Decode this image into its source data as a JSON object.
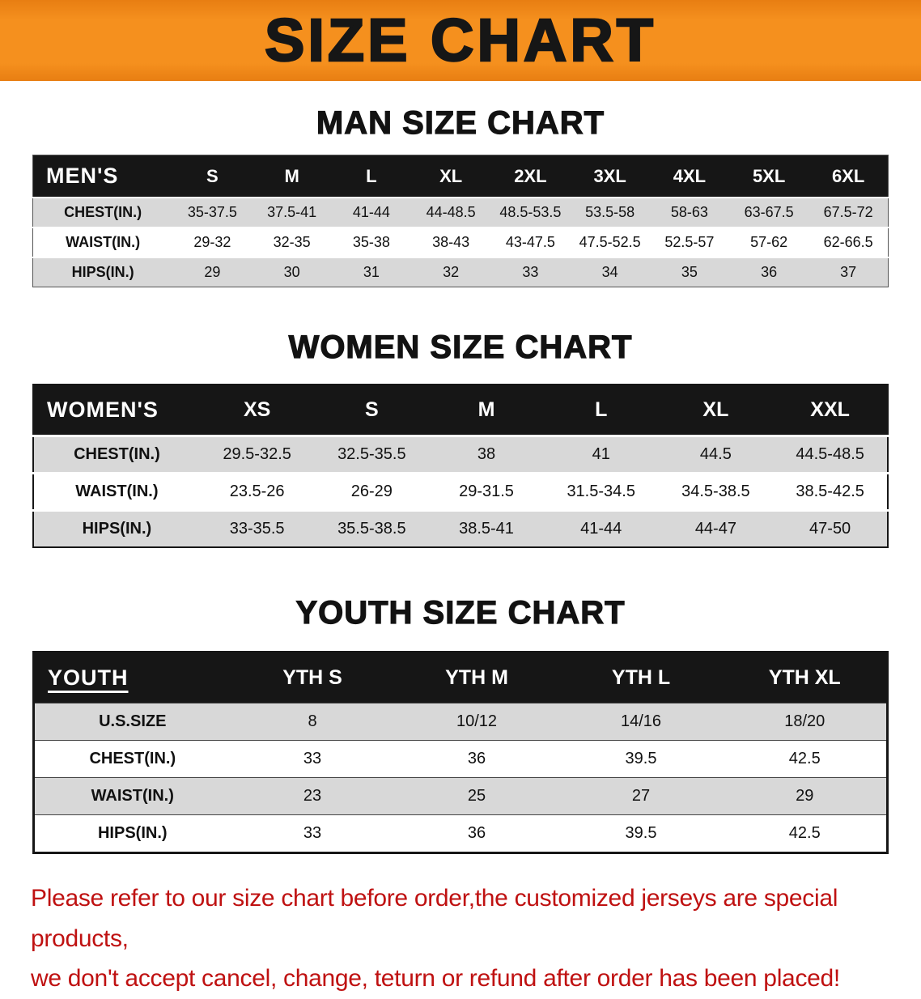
{
  "banner": {
    "title": "SIZE CHART",
    "background_color": "#F5901E",
    "text_color": "#161616"
  },
  "colors": {
    "table_header_bg": "#161616",
    "table_header_text": "#FFFFFF",
    "row_stripe": "#D8D8D8",
    "footer_text": "#BF1111"
  },
  "sections": [
    {
      "id": "men",
      "title": "MAN SIZE CHART",
      "table": {
        "header": [
          "MEN'S",
          "S",
          "M",
          "L",
          "XL",
          "2XL",
          "3XL",
          "4XL",
          "5XL",
          "6XL"
        ],
        "rows": [
          {
            "label": "CHEST(IN.)",
            "values": [
              "35-37.5",
              "37.5-41",
              "41-44",
              "44-48.5",
              "48.5-53.5",
              "53.5-58",
              "58-63",
              "63-67.5",
              "67.5-72"
            ]
          },
          {
            "label": "WAIST(IN.)",
            "values": [
              "29-32",
              "32-35",
              "35-38",
              "38-43",
              "43-47.5",
              "47.5-52.5",
              "52.5-57",
              "57-62",
              "62-66.5"
            ]
          },
          {
            "label": "HIPS(IN.)",
            "values": [
              "29",
              "30",
              "31",
              "32",
              "33",
              "34",
              "35",
              "36",
              "37"
            ]
          }
        ]
      }
    },
    {
      "id": "women",
      "title": "WOMEN SIZE CHART",
      "table": {
        "header": [
          "WOMEN'S",
          "XS",
          "S",
          "M",
          "L",
          "XL",
          "XXL"
        ],
        "rows": [
          {
            "label": "CHEST(IN.)",
            "values": [
              "29.5-32.5",
              "32.5-35.5",
              "38",
              "41",
              "44.5",
              "44.5-48.5"
            ]
          },
          {
            "label": "WAIST(IN.)",
            "values": [
              "23.5-26",
              "26-29",
              "29-31.5",
              "31.5-34.5",
              "34.5-38.5",
              "38.5-42.5"
            ]
          },
          {
            "label": "HIPS(IN.)",
            "values": [
              "33-35.5",
              "35.5-38.5",
              "38.5-41",
              "41-44",
              "44-47",
              "47-50"
            ]
          }
        ]
      }
    },
    {
      "id": "youth",
      "title": "YOUTH SIZE CHART",
      "table": {
        "header": [
          "YOUTH",
          "YTH S",
          "YTH M",
          "YTH L",
          "YTH XL"
        ],
        "rows": [
          {
            "label": "U.S.SIZE",
            "values": [
              "8",
              "10/12",
              "14/16",
              "18/20"
            ]
          },
          {
            "label": "CHEST(IN.)",
            "values": [
              "33",
              "36",
              "39.5",
              "42.5"
            ]
          },
          {
            "label": "WAIST(IN.)",
            "values": [
              "23",
              "25",
              "27",
              "29"
            ]
          },
          {
            "label": "HIPS(IN.)",
            "values": [
              "33",
              "36",
              "39.5",
              "42.5"
            ]
          }
        ]
      }
    }
  ],
  "footer": {
    "line1": "Please refer to our size chart before order,the customized jerseys are special products,",
    "line2": "we don't accept cancel, change, teturn or refund after order has been placed!"
  }
}
